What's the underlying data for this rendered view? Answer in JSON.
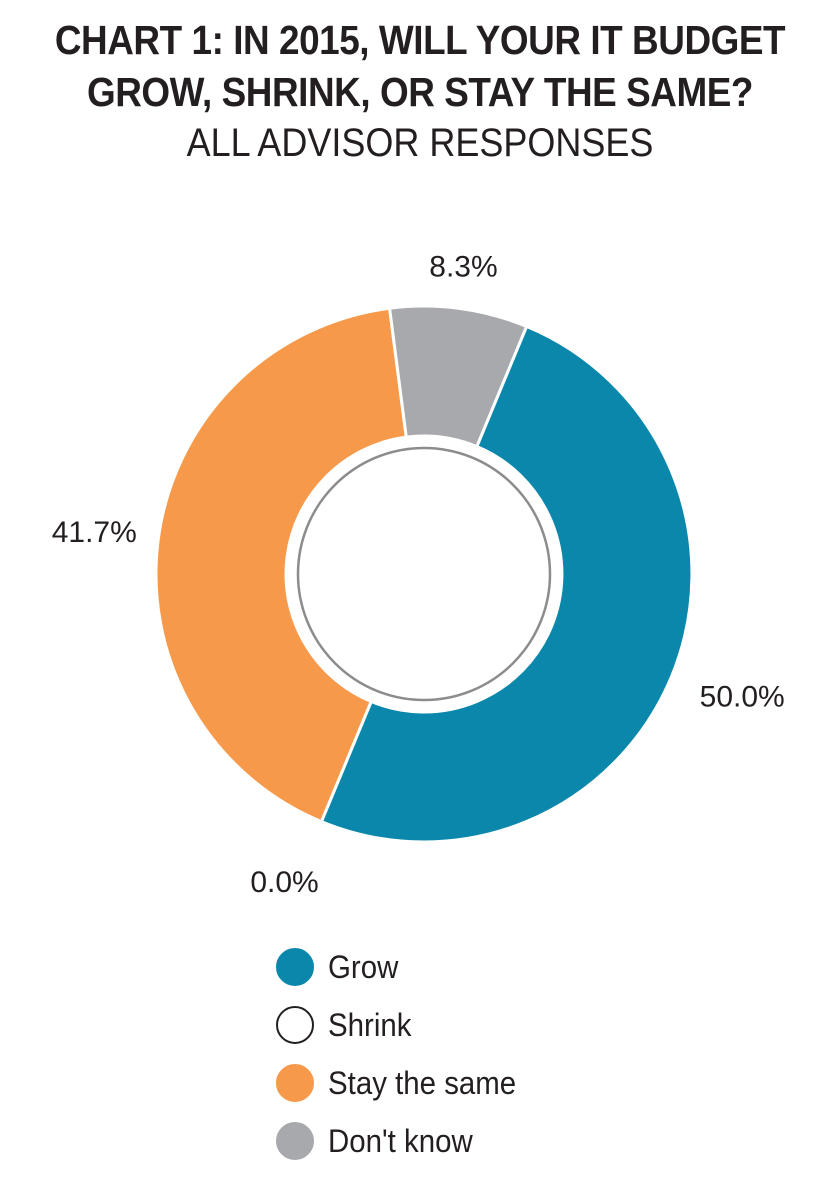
{
  "title_lines": [
    "CHART 1:  IN 2015, WILL YOUR IT BUDGET",
    "GROW, SHRINK, OR STAY THE SAME?"
  ],
  "subtitle": "ALL ADVISOR RESPONSES",
  "chart_data": {
    "type": "pie",
    "style": "donut",
    "title": "CHART 1:  IN 2015, WILL YOUR IT BUDGET GROW, SHRINK, OR STAY THE SAME?",
    "subtitle": "ALL ADVISOR RESPONSES",
    "categories": [
      "Grow",
      "Shrink",
      "Stay the same",
      "Don't know"
    ],
    "values": [
      50.0,
      0.0,
      41.7,
      8.3
    ],
    "data_labels": [
      "50.0%",
      "0.0%",
      "41.7%",
      "8.3%"
    ],
    "colors": [
      "#0a87ab",
      "#ffffff",
      "#f7994a",
      "#a7a9ac"
    ],
    "legend_position": "bottom"
  },
  "legend": [
    {
      "label": "Grow",
      "color": "#0a87ab",
      "border": "#0a87ab"
    },
    {
      "label": "Shrink",
      "color": "#ffffff",
      "border": "#231f20"
    },
    {
      "label": "Stay the same",
      "color": "#f7994a",
      "border": "#f7994a"
    },
    {
      "label": "Don't know",
      "color": "#a7a9ac",
      "border": "#a7a9ac"
    }
  ]
}
